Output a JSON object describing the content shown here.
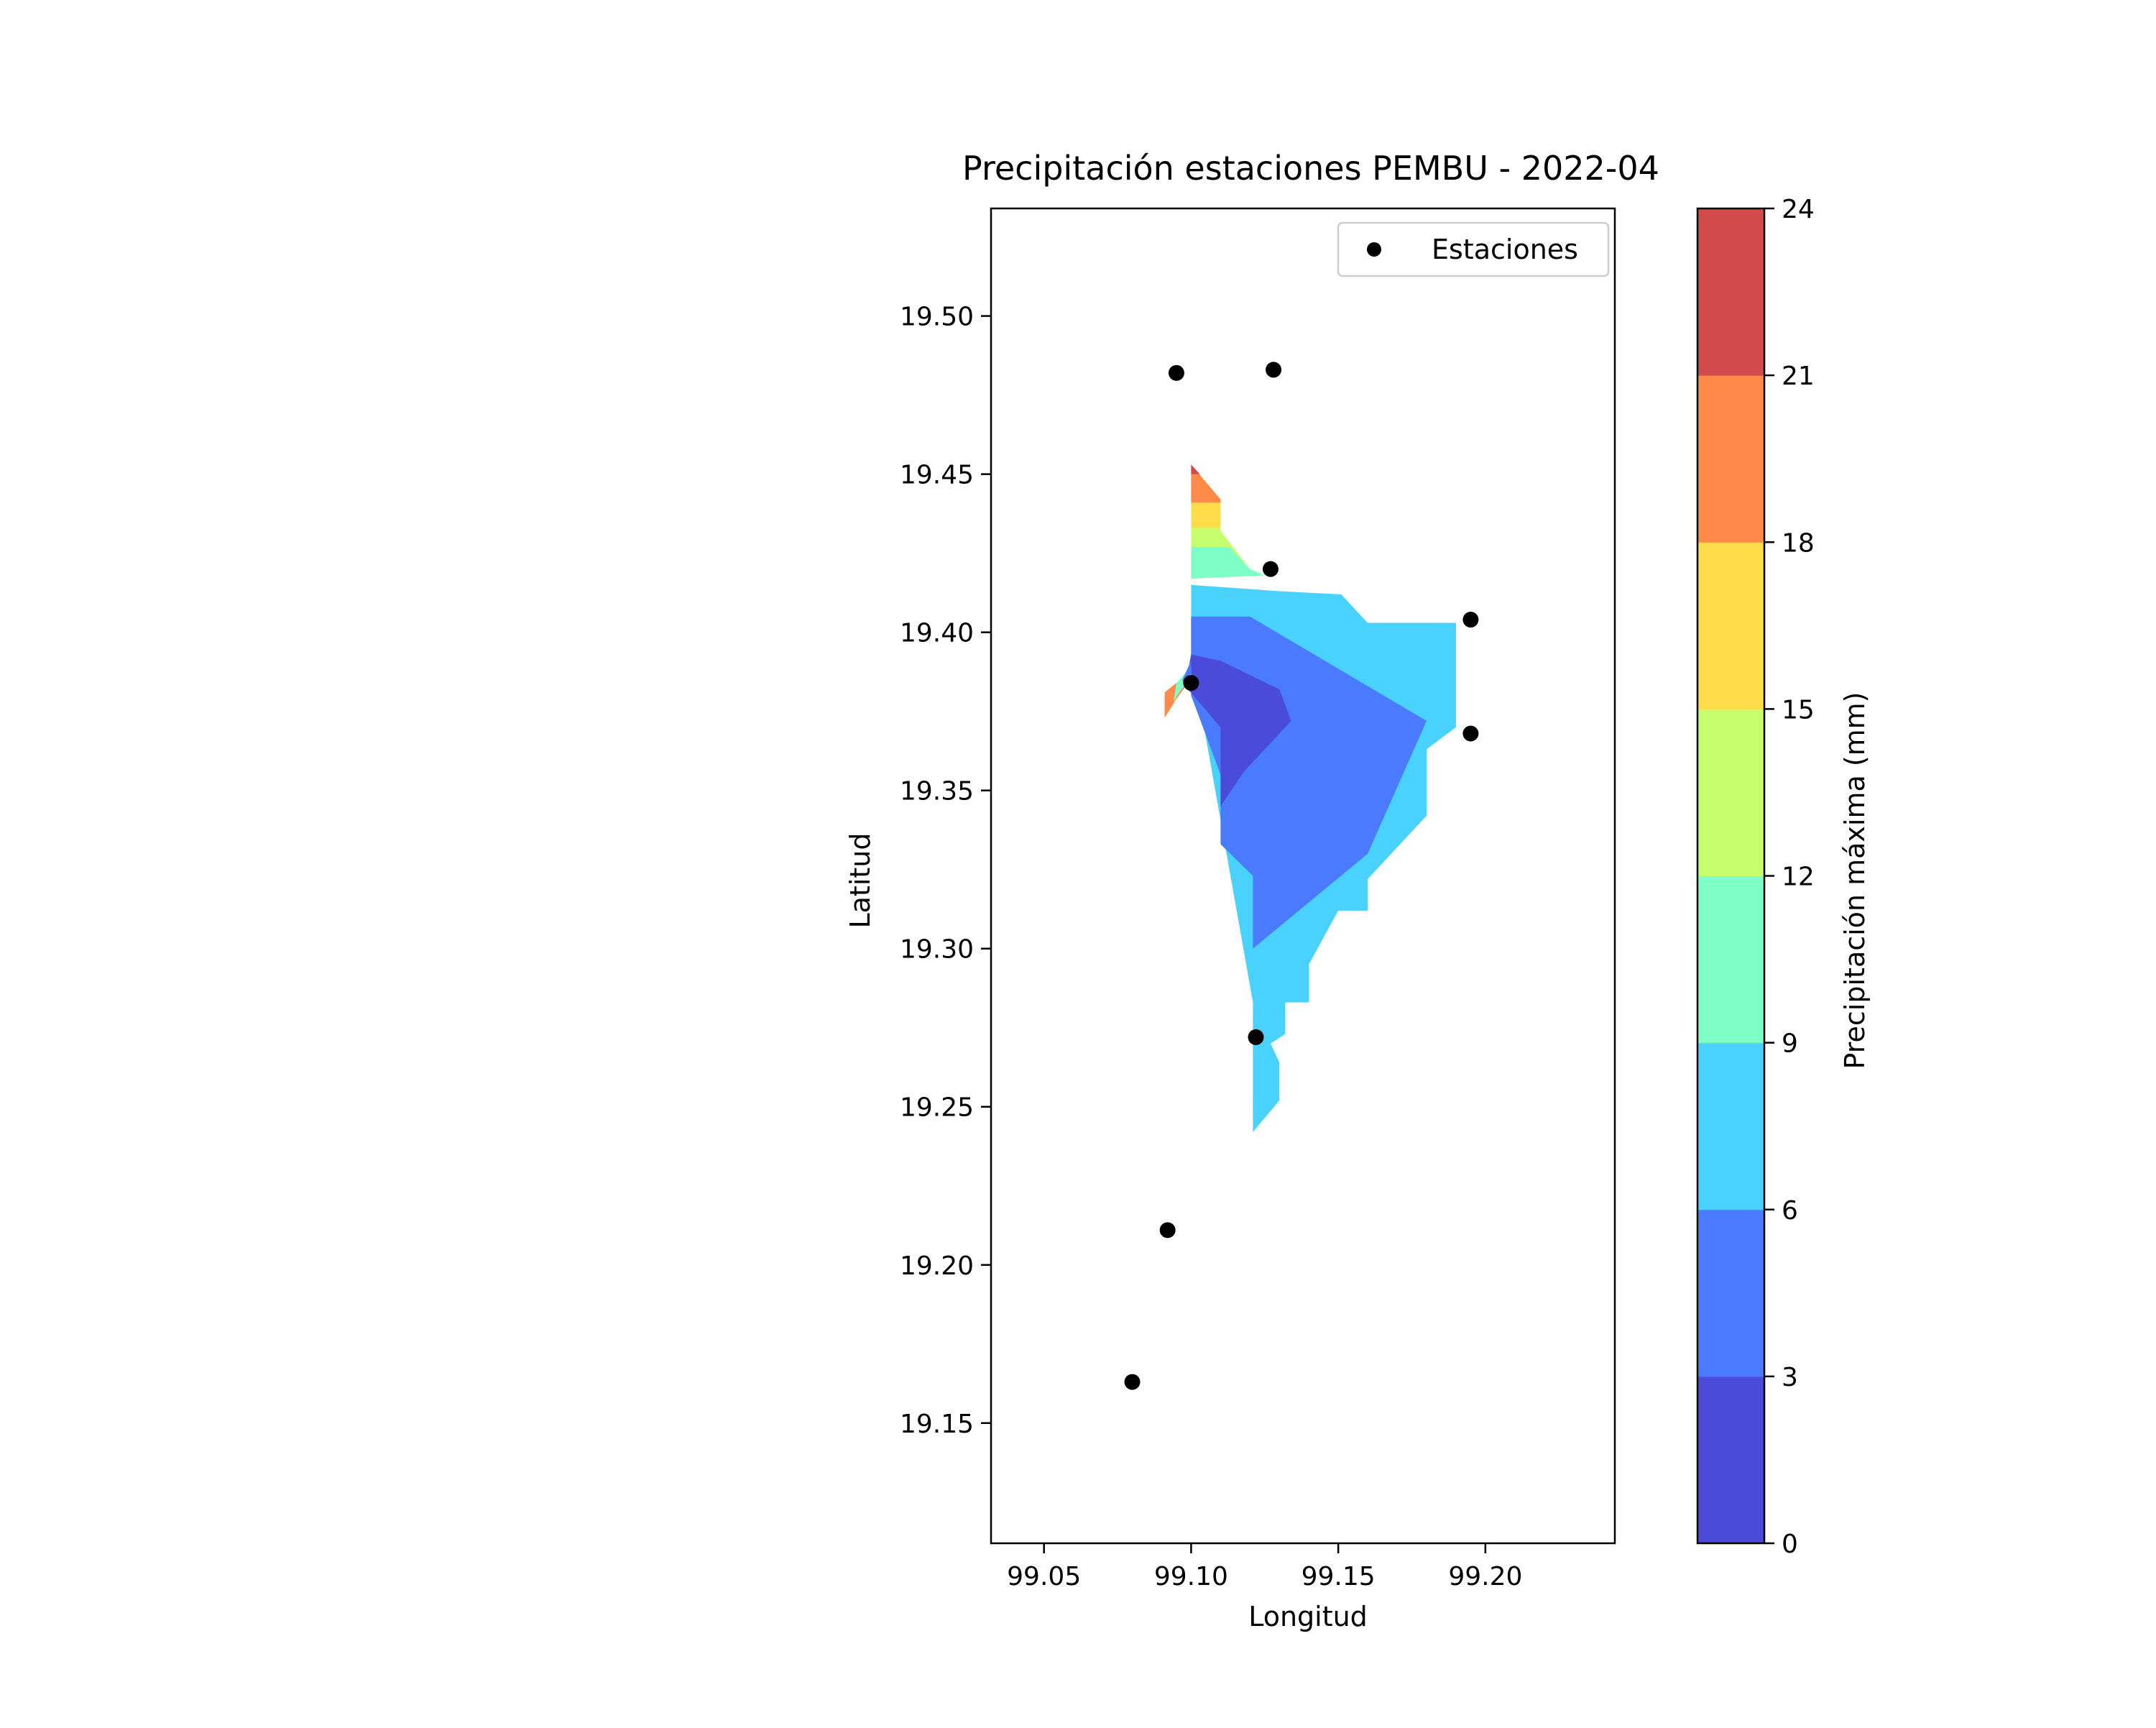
{
  "chart_data": {
    "type": "contour",
    "title": "Precipitación estaciones PEMBU - 2022-04",
    "xlabel": "Longitud",
    "ylabel": "Latitud",
    "xlim": [
      99.032,
      99.244
    ],
    "ylim": [
      19.112,
      19.534
    ],
    "xticks": [
      "99.05",
      "99.10",
      "99.15",
      "99.20"
    ],
    "yticks": [
      "19.15",
      "19.20",
      "19.25",
      "19.30",
      "19.35",
      "19.40",
      "19.45",
      "19.50"
    ],
    "grid": false,
    "legend": {
      "label": "Estaciones",
      "position": "upper-right",
      "marker_color": "#000000"
    },
    "colorbar": {
      "label": "Precipitación máxima (mm)",
      "levels": [
        0,
        3,
        6,
        9,
        12,
        15,
        18,
        21,
        24
      ],
      "tick_labels": [
        "0",
        "3",
        "6",
        "9",
        "12",
        "15",
        "18",
        "21",
        "24"
      ],
      "colors": [
        "#4b4bd9",
        "#4a7bff",
        "#4ad2ff",
        "#7dffc6",
        "#c6ff6d",
        "#ffdc4a",
        "#ff8a4a",
        "#d24b4b"
      ]
    },
    "stations": [
      {
        "x": 99.095,
        "y": 19.482
      },
      {
        "x": 99.128,
        "y": 19.483
      },
      {
        "x": 99.127,
        "y": 19.42
      },
      {
        "x": 99.195,
        "y": 19.404
      },
      {
        "x": 99.1,
        "y": 19.384
      },
      {
        "x": 99.195,
        "y": 19.368
      },
      {
        "x": 99.122,
        "y": 19.272
      },
      {
        "x": 99.092,
        "y": 19.211
      },
      {
        "x": 99.08,
        "y": 19.163
      }
    ],
    "contour_bands": [
      {
        "level": 6,
        "points": [
          [
            99.1,
            19.415
          ],
          [
            99.13,
            19.413
          ],
          [
            99.151,
            19.412
          ],
          [
            99.16,
            19.403
          ],
          [
            99.19,
            19.403
          ],
          [
            99.19,
            19.37
          ],
          [
            99.18,
            19.363
          ],
          [
            99.18,
            19.342
          ],
          [
            99.16,
            19.322
          ],
          [
            99.16,
            19.312
          ],
          [
            99.15,
            19.312
          ],
          [
            99.14,
            19.295
          ],
          [
            99.14,
            19.283
          ],
          [
            99.132,
            19.283
          ],
          [
            99.132,
            19.273
          ],
          [
            99.127,
            19.27
          ],
          [
            99.13,
            19.264
          ],
          [
            99.13,
            19.252
          ],
          [
            99.121,
            19.242
          ],
          [
            99.121,
            19.283
          ],
          [
            99.1,
            19.393
          ]
        ]
      },
      {
        "level": 12,
        "points": [
          [
            99.1,
            19.453
          ],
          [
            99.11,
            19.442
          ],
          [
            99.11,
            19.432
          ],
          [
            99.12,
            19.42
          ],
          [
            99.125,
            19.418
          ],
          [
            99.1,
            19.417
          ]
        ]
      },
      {
        "level": 9,
        "points": [
          [
            99.1,
            19.427
          ],
          [
            99.113,
            19.427
          ],
          [
            99.12,
            19.42
          ],
          [
            99.125,
            19.418
          ],
          [
            99.1,
            19.417
          ]
        ]
      },
      {
        "level": 15,
        "points": [
          [
            99.1,
            19.453
          ],
          [
            99.11,
            19.442
          ],
          [
            99.11,
            19.433
          ],
          [
            99.1,
            19.433
          ]
        ]
      },
      {
        "level": 18,
        "points": [
          [
            99.1,
            19.453
          ],
          [
            99.11,
            19.442
          ],
          [
            99.11,
            19.441
          ],
          [
            99.1,
            19.441
          ]
        ]
      },
      {
        "level": 21,
        "points": [
          [
            99.1,
            19.453
          ],
          [
            99.103,
            19.45
          ],
          [
            99.1,
            19.45
          ]
        ]
      },
      {
        "level": 3,
        "points": [
          [
            99.1,
            19.405
          ],
          [
            99.12,
            19.405
          ],
          [
            99.18,
            19.372
          ],
          [
            99.16,
            19.33
          ],
          [
            99.121,
            19.3
          ],
          [
            99.121,
            19.323
          ],
          [
            99.11,
            19.333
          ],
          [
            99.11,
            19.355
          ],
          [
            99.1,
            19.38
          ],
          [
            99.1,
            19.393
          ]
        ]
      },
      {
        "level": 0,
        "points": [
          [
            99.1,
            19.393
          ],
          [
            99.11,
            19.391
          ],
          [
            99.13,
            19.382
          ],
          [
            99.134,
            19.372
          ],
          [
            99.118,
            19.356
          ],
          [
            99.11,
            19.345
          ],
          [
            99.11,
            19.37
          ],
          [
            99.098,
            19.383
          ]
        ]
      },
      {
        "level": 18,
        "points": [
          [
            99.091,
            19.381
          ],
          [
            99.095,
            19.384
          ],
          [
            99.1,
            19.387
          ],
          [
            99.099,
            19.384
          ],
          [
            99.095,
            19.379
          ],
          [
            99.091,
            19.373
          ]
        ]
      },
      {
        "level": 9,
        "points": [
          [
            99.095,
            19.384
          ],
          [
            99.1,
            19.389
          ],
          [
            99.1,
            19.386
          ],
          [
            99.096,
            19.381
          ],
          [
            99.094,
            19.378
          ]
        ]
      },
      {
        "level": 3,
        "points": [
          [
            99.097,
            19.385
          ],
          [
            99.1,
            19.391
          ],
          [
            99.1,
            19.387
          ],
          [
            99.098,
            19.383
          ]
        ]
      }
    ]
  }
}
